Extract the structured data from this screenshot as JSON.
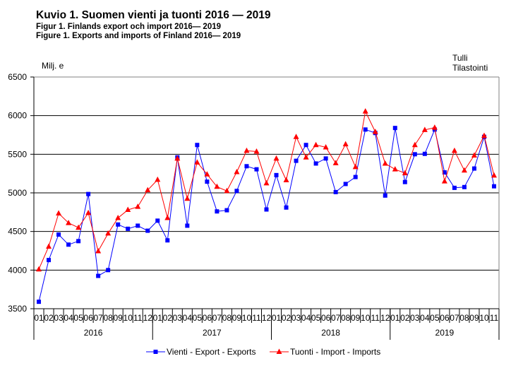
{
  "chart_data": {
    "type": "line",
    "title": "Kuvio 1. Suomen vienti ja tuonti 2016 — 2019",
    "subtitles": [
      "Figur  1. Finlands export och import 2016— 2019",
      "Figure  1. Exports and imports of Finland  2016— 2019"
    ],
    "ylabel": "Milj. e",
    "source": [
      "Tulli",
      "Tilastointi"
    ],
    "ylim": [
      3500,
      6500
    ],
    "yticks": [
      3500,
      4000,
      4500,
      5000,
      5500,
      6000,
      6500
    ],
    "grid": true,
    "legend_position": "bottom",
    "years": [
      {
        "label": "2016",
        "months": 12
      },
      {
        "label": "2017",
        "months": 12
      },
      {
        "label": "2018",
        "months": 12
      },
      {
        "label": "2019",
        "months": 11
      }
    ],
    "month_labels": [
      "01",
      "02",
      "03",
      "04",
      "05",
      "06",
      "07",
      "08",
      "09",
      "10",
      "11",
      "12",
      "01",
      "02",
      "03",
      "04",
      "05",
      "06",
      "07",
      "08",
      "09",
      "10",
      "11",
      "12",
      "01",
      "02",
      "03",
      "04",
      "05",
      "06",
      "07",
      "08",
      "09",
      "10",
      "11",
      "12",
      "01",
      "02",
      "03",
      "04",
      "05",
      "06",
      "07",
      "08",
      "09",
      "10",
      "11"
    ],
    "series": [
      {
        "name": "Vienti - Export - Exports",
        "color": "#0000ff",
        "marker": "square",
        "values": [
          3590,
          4130,
          4460,
          4330,
          4375,
          4985,
          3925,
          4000,
          4590,
          4535,
          4575,
          4510,
          4640,
          4385,
          5460,
          4575,
          5620,
          5145,
          4760,
          4775,
          5025,
          5345,
          5305,
          4785,
          5230,
          4810,
          5415,
          5620,
          5380,
          5445,
          5010,
          5115,
          5205,
          5820,
          5775,
          4965,
          5840,
          5140,
          5500,
          5505,
          5820,
          5265,
          5065,
          5075,
          5315,
          5725,
          5085
        ]
      },
      {
        "name": "Tuonti - Import - Imports",
        "color": "#ff0000",
        "marker": "triangle",
        "values": [
          4010,
          4305,
          4735,
          4610,
          4550,
          4740,
          4245,
          4475,
          4675,
          4780,
          4820,
          5035,
          5170,
          4675,
          5445,
          4925,
          5395,
          5240,
          5080,
          5025,
          5270,
          5545,
          5535,
          5125,
          5445,
          5165,
          5725,
          5460,
          5620,
          5590,
          5385,
          5630,
          5335,
          6055,
          5790,
          5380,
          5305,
          5255,
          5620,
          5815,
          5845,
          5150,
          5545,
          5290,
          5485,
          5740,
          5225
        ]
      }
    ]
  }
}
